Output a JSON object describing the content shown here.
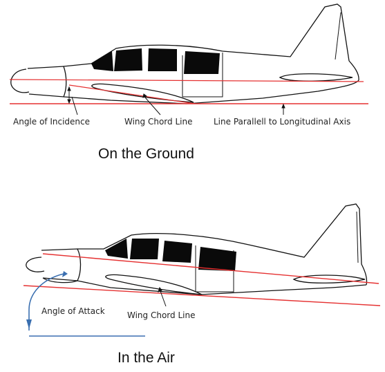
{
  "ground": {
    "title": "On the Ground",
    "labels": {
      "angle": "Angle of Incidence",
      "chord": "Wing Chord Line",
      "parallel": "Line Parallell to Longitudinal Axis"
    }
  },
  "air": {
    "title": "In the Air",
    "labels": {
      "angle": "Angle of Attack",
      "chord": "Wing Chord Line"
    }
  },
  "colors": {
    "reference_line": "#e53030",
    "attack_arrow": "#3a6fb0",
    "outline": "#111111",
    "windows": "#0a0a0a"
  }
}
